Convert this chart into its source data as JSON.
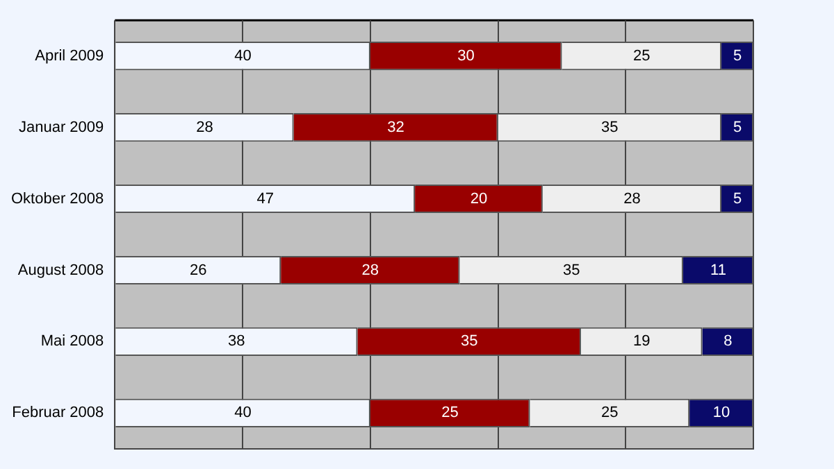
{
  "chart_data": {
    "type": "bar",
    "orientation": "horizontal",
    "stacked": true,
    "categories": [
      "April 2009",
      "Januar 2009",
      "Oktober 2008",
      "August 2008",
      "Mai 2008",
      "Februar 2008"
    ],
    "series": [
      {
        "color": "#f2f6fe",
        "values": [
          40,
          28,
          47,
          26,
          38,
          40
        ]
      },
      {
        "color": "#990000",
        "values": [
          30,
          32,
          20,
          28,
          35,
          25
        ]
      },
      {
        "color": "#eeeeee",
        "values": [
          25,
          35,
          28,
          35,
          19,
          25
        ]
      },
      {
        "color": "#0a0a6a",
        "values": [
          5,
          5,
          5,
          11,
          8,
          10
        ]
      }
    ],
    "xlim": [
      0,
      100
    ],
    "xticks": [
      {
        "value": 0,
        "label": null
      },
      {
        "value": 20,
        "label": null
      },
      {
        "value": 40,
        "label": null
      },
      {
        "value": 60,
        "label": null
      },
      {
        "value": 80,
        "label": null
      },
      {
        "value": 100,
        "label": null
      }
    ],
    "grid": "x",
    "tick_labels": "y",
    "data_labels": true,
    "legend": false
  }
}
